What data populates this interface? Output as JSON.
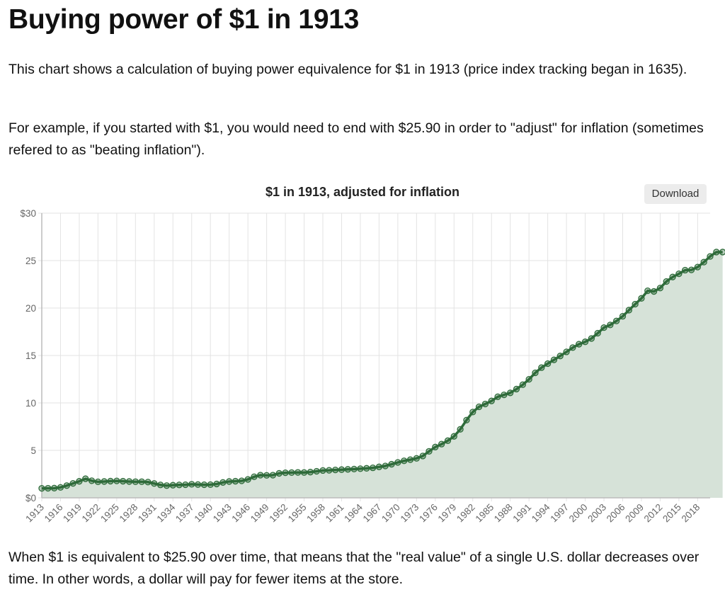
{
  "page": {
    "title": "Buying power of $1 in 1913",
    "paragraph1": "This chart shows a calculation of buying power equivalence for $1 in 1913 (price index tracking began in 1635).",
    "paragraph2": "For example, if you started with $1, you would need to end with $25.90 in order to \"adjust\" for inflation (sometimes refered to as \"beating inflation\").",
    "paragraph3": "When $1 is equivalent to $25.90 over time, that means that the \"real value\" of a single U.S. dollar decreases over time. In other words, a dollar will pay for fewer items at the store.",
    "download_label": "Download"
  },
  "colors": {
    "line": "#2e6b3a",
    "fill": "#d6e2d8",
    "grid": "#e3e3e3",
    "axis": "#bbbbbb"
  },
  "chart_data": {
    "type": "area",
    "title": "$1 in 1913, adjusted for inflation",
    "xlabel": "",
    "ylabel": "",
    "ylim": [
      0,
      30
    ],
    "yticks": [
      "$0",
      "5",
      "10",
      "15",
      "20",
      "25",
      "$30"
    ],
    "ytick_values": [
      0,
      5,
      10,
      15,
      20,
      25,
      30
    ],
    "xtick_labels": [
      "1913",
      "1916",
      "1919",
      "1922",
      "1925",
      "1928",
      "1931",
      "1934",
      "1937",
      "1940",
      "1943",
      "1946",
      "1949",
      "1952",
      "1955",
      "1958",
      "1961",
      "1964",
      "1967",
      "1970",
      "1973",
      "1976",
      "1979",
      "1982",
      "1985",
      "1988",
      "1991",
      "1994",
      "1997",
      "2000",
      "2003",
      "2006",
      "2009",
      "2012",
      "2015",
      "2018"
    ],
    "grid": true,
    "legend": "none",
    "x_start": 1913,
    "x_end": 2020,
    "series": [
      {
        "name": "$1 in 1913, adjusted for inflation",
        "values": [
          1.0,
          1.01,
          1.02,
          1.1,
          1.29,
          1.52,
          1.74,
          2.01,
          1.8,
          1.69,
          1.72,
          1.76,
          1.78,
          1.75,
          1.72,
          1.7,
          1.7,
          1.66,
          1.51,
          1.36,
          1.29,
          1.33,
          1.36,
          1.38,
          1.43,
          1.4,
          1.38,
          1.39,
          1.46,
          1.62,
          1.72,
          1.75,
          1.79,
          1.94,
          2.22,
          2.39,
          2.37,
          2.39,
          2.58,
          2.64,
          2.66,
          2.68,
          2.67,
          2.71,
          2.8,
          2.88,
          2.9,
          2.94,
          2.97,
          3.0,
          3.03,
          3.07,
          3.11,
          3.16,
          3.26,
          3.36,
          3.54,
          3.73,
          3.9,
          4.02,
          4.16,
          4.41,
          4.9,
          5.35,
          5.66,
          6.02,
          6.48,
          7.22,
          8.19,
          9.04,
          9.59,
          9.89,
          10.21,
          10.65,
          10.85,
          11.06,
          11.46,
          11.92,
          12.49,
          13.17,
          13.72,
          14.14,
          14.54,
          14.95,
          15.38,
          15.83,
          16.19,
          16.44,
          16.79,
          17.35,
          17.94,
          18.22,
          18.64,
          19.13,
          19.78,
          20.41,
          21.02,
          21.82,
          21.75,
          22.11,
          22.8,
          23.27,
          23.61,
          23.99,
          24.02,
          24.32,
          24.84,
          25.44,
          25.9,
          25.9
        ]
      }
    ]
  }
}
